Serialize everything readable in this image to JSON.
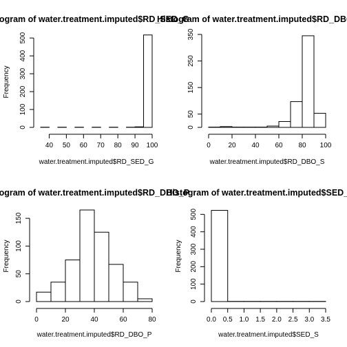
{
  "chart_data": [
    {
      "type": "bar",
      "title": "Histogram of water.treatment.imputed$RD_SED_G",
      "xlabel": "water.treatment.imputed$RD_SED_G",
      "ylabel": "Frequency",
      "xlim": [
        35,
        100
      ],
      "ylim": [
        0,
        520
      ],
      "xticks": [
        40,
        50,
        60,
        70,
        80,
        90,
        100
      ],
      "yticks": [
        0,
        100,
        200,
        300,
        400,
        500
      ],
      "bins": [
        {
          "x0": 35,
          "x1": 40,
          "count": 1
        },
        {
          "x0": 40,
          "x1": 45,
          "count": 0
        },
        {
          "x0": 45,
          "x1": 50,
          "count": 1
        },
        {
          "x0": 50,
          "x1": 55,
          "count": 0
        },
        {
          "x0": 55,
          "x1": 60,
          "count": 1
        },
        {
          "x0": 60,
          "x1": 65,
          "count": 0
        },
        {
          "x0": 65,
          "x1": 70,
          "count": 1
        },
        {
          "x0": 70,
          "x1": 75,
          "count": 0
        },
        {
          "x0": 75,
          "x1": 80,
          "count": 1
        },
        {
          "x0": 80,
          "x1": 85,
          "count": 0
        },
        {
          "x0": 85,
          "x1": 90,
          "count": 1
        },
        {
          "x0": 90,
          "x1": 95,
          "count": 3
        },
        {
          "x0": 95,
          "x1": 100,
          "count": 517
        }
      ]
    },
    {
      "type": "bar",
      "title": "Histogram of water.treatment.imputed$RD_DBO_S",
      "xlabel": "water.treatment.imputed$RD_DBO_S",
      "ylabel": "",
      "xlim": [
        0,
        100
      ],
      "ylim": [
        0,
        350
      ],
      "xticks": [
        0,
        20,
        40,
        60,
        80,
        100
      ],
      "yticks": [
        0,
        50,
        150,
        250,
        350
      ],
      "bins": [
        {
          "x0": 0,
          "x1": 10,
          "count": 1
        },
        {
          "x0": 10,
          "x1": 20,
          "count": 3
        },
        {
          "x0": 20,
          "x1": 30,
          "count": 1
        },
        {
          "x0": 30,
          "x1": 40,
          "count": 1
        },
        {
          "x0": 40,
          "x1": 50,
          "count": 1
        },
        {
          "x0": 50,
          "x1": 60,
          "count": 5
        },
        {
          "x0": 60,
          "x1": 70,
          "count": 22
        },
        {
          "x0": 70,
          "x1": 80,
          "count": 97
        },
        {
          "x0": 80,
          "x1": 90,
          "count": 345
        },
        {
          "x0": 90,
          "x1": 100,
          "count": 53
        }
      ]
    },
    {
      "type": "bar",
      "title": "Histogram of water.treatment.imputed$RD_DBO_P",
      "xlabel": "water.treatment.imputed$RD_DBO_P",
      "ylabel": "Frequency",
      "xlim": [
        0,
        80
      ],
      "ylim": [
        0,
        165
      ],
      "xticks": [
        0,
        20,
        40,
        60,
        80
      ],
      "yticks": [
        0,
        50,
        100,
        150
      ],
      "bins": [
        {
          "x0": 0,
          "x1": 10,
          "count": 17
        },
        {
          "x0": 10,
          "x1": 20,
          "count": 35
        },
        {
          "x0": 20,
          "x1": 30,
          "count": 75
        },
        {
          "x0": 30,
          "x1": 40,
          "count": 165
        },
        {
          "x0": 40,
          "x1": 50,
          "count": 125
        },
        {
          "x0": 50,
          "x1": 60,
          "count": 67
        },
        {
          "x0": 60,
          "x1": 70,
          "count": 35
        },
        {
          "x0": 70,
          "x1": 80,
          "count": 5
        }
      ]
    },
    {
      "type": "bar",
      "title": "Histogram of water.treatment.imputed$SED_S",
      "xlabel": "water.treatment.imputed$SED_S",
      "ylabel": "Frequency",
      "xlim": [
        0,
        3.5
      ],
      "ylim": [
        0,
        525
      ],
      "xticks": [
        0.0,
        0.5,
        1.0,
        1.5,
        2.0,
        2.5,
        3.0,
        3.5
      ],
      "yticks": [
        0,
        100,
        200,
        300,
        400,
        500
      ],
      "bins": [
        {
          "x0": 0.0,
          "x1": 0.5,
          "count": 523
        },
        {
          "x0": 0.5,
          "x1": 1.0,
          "count": 1
        },
        {
          "x0": 1.0,
          "x1": 1.5,
          "count": 1
        },
        {
          "x0": 1.5,
          "x1": 2.0,
          "count": 1
        },
        {
          "x0": 2.0,
          "x1": 2.5,
          "count": 1
        },
        {
          "x0": 2.5,
          "x1": 3.0,
          "count": 1
        },
        {
          "x0": 3.0,
          "x1": 3.5,
          "count": 1
        }
      ]
    }
  ]
}
